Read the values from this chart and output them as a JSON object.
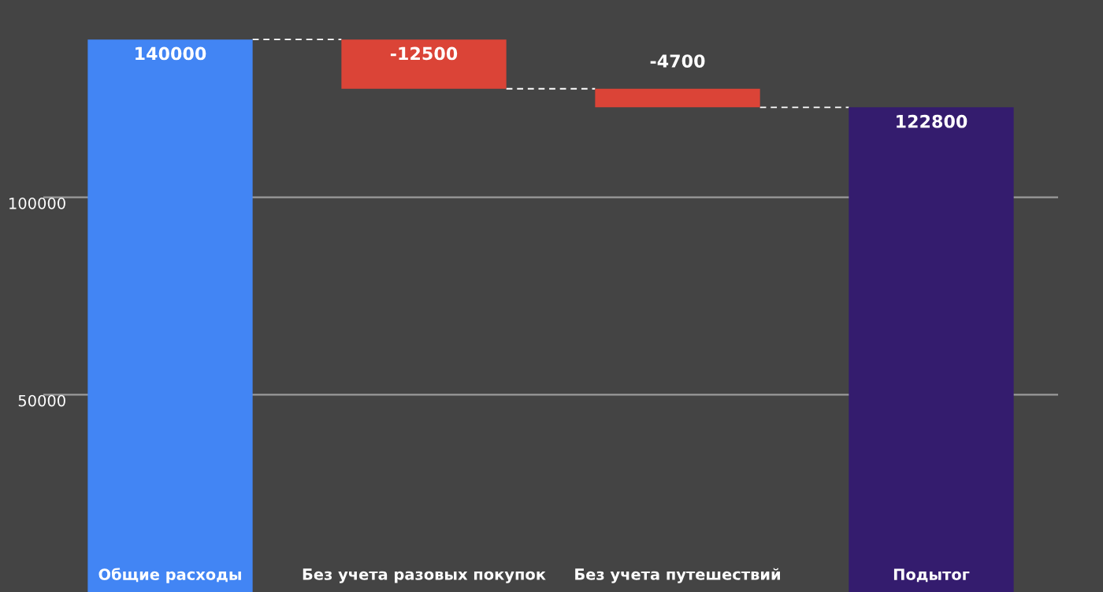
{
  "chart_data": {
    "type": "bar",
    "categories": [
      "Общие расходы",
      "Без учета разовых покупок",
      "Без учета путешествий",
      "Подытог"
    ],
    "values": [
      140000,
      -12500,
      -4700,
      122800
    ],
    "base": [
      0,
      140000,
      127500,
      0
    ],
    "colors": [
      "#4285f4",
      "#db4437",
      "#db4437",
      "#341c6e"
    ],
    "ylim": [
      0,
      150000
    ],
    "yticks": [
      50000,
      100000
    ],
    "grid": "y",
    "data_labels": true,
    "legend": false
  }
}
